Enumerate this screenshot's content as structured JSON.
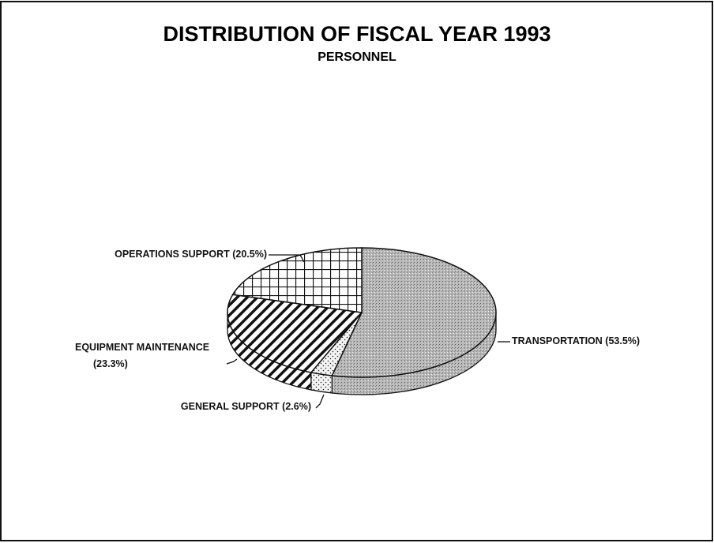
{
  "chart_data": {
    "type": "pie",
    "title": "DISTRIBUTION OF FISCAL YEAR 1993",
    "subtitle": "PERSONNEL",
    "categories": [
      "TRANSPORTATION",
      "GENERAL SUPPORT",
      "EQUIPMENT MAINTENANCE",
      "OPERATIONS SUPPORT"
    ],
    "values": [
      53.5,
      2.6,
      23.3,
      20.5
    ],
    "value_labels": [
      "(53.5%)",
      "(2.6%)",
      "(23.3%)",
      "(20.5%)"
    ],
    "colors": [
      "#b8b8b8",
      "#f4f4f4",
      "#ffffff",
      "#ffffff"
    ]
  }
}
